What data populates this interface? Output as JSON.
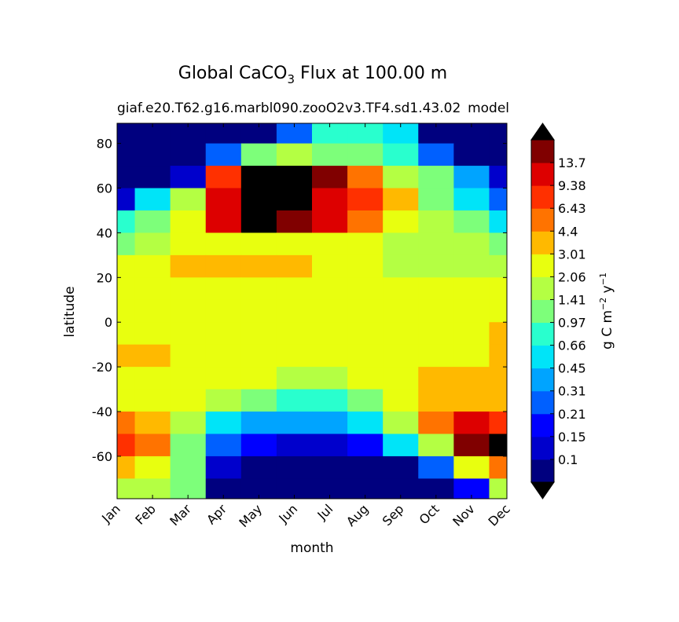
{
  "chart_data": {
    "type": "contour",
    "title_parts": [
      "Global CaCO",
      "3",
      " Flux at 100.00 m"
    ],
    "subtitle_left": "giaf.e20.T62.g16.marbl090.zooO2v3.TF4.sd1.43.02",
    "subtitle_right": "model",
    "xlabel": "month",
    "ylabel": "latitude",
    "colorbar_label_parts": [
      "g C m",
      "−2",
      " y",
      "−1"
    ],
    "x": [
      1,
      2,
      3,
      4,
      5,
      6,
      7,
      8,
      9,
      10,
      11,
      12
    ],
    "xlim": [
      1,
      12
    ],
    "xticks": [
      {
        "value": 1,
        "label": "Jan"
      },
      {
        "value": 2,
        "label": "Feb"
      },
      {
        "value": 3,
        "label": "Mar"
      },
      {
        "value": 4,
        "label": "Apr"
      },
      {
        "value": 5,
        "label": "May"
      },
      {
        "value": 6,
        "label": "Jun"
      },
      {
        "value": 7,
        "label": "Jul"
      },
      {
        "value": 8,
        "label": "Aug"
      },
      {
        "value": 9,
        "label": "Sep"
      },
      {
        "value": 10,
        "label": "Oct"
      },
      {
        "value": 11,
        "label": "Nov"
      },
      {
        "value": 12,
        "label": "Dec"
      }
    ],
    "y": [
      85,
      75,
      65,
      55,
      45,
      35,
      25,
      15,
      5,
      -5,
      -15,
      -25,
      -35,
      -45,
      -55,
      -65,
      -75
    ],
    "ylim": [
      -79,
      89
    ],
    "yticks": [
      -60,
      -40,
      -20,
      0,
      20,
      40,
      60,
      80
    ],
    "z": [
      [
        0.05,
        0.05,
        0.05,
        0.05,
        0.05,
        0.3,
        0.7,
        0.8,
        0.6,
        0.05,
        0.05,
        0.05
      ],
      [
        0.05,
        0.05,
        0.05,
        0.3,
        1.0,
        1.5,
        1.2,
        1.0,
        0.8,
        0.3,
        0.05,
        0.05
      ],
      [
        0.05,
        0.05,
        0.1,
        8,
        25,
        25,
        14,
        5,
        2,
        1.0,
        0.4,
        0.1
      ],
      [
        0.1,
        0.5,
        2,
        10,
        25,
        25,
        12,
        7,
        4,
        1.2,
        0.6,
        0.3
      ],
      [
        0.8,
        1.2,
        3,
        10,
        25,
        20,
        10,
        6,
        3,
        1.5,
        1.0,
        0.6
      ],
      [
        1.2,
        1.5,
        2.2,
        2.5,
        2.5,
        2.5,
        2.5,
        2.2,
        1.8,
        1.6,
        1.5,
        1.2
      ],
      [
        2.5,
        2.5,
        3.5,
        3.5,
        3.2,
        3.2,
        2.5,
        2.5,
        1.8,
        1.8,
        1.8,
        1.8
      ],
      [
        2.5,
        2.5,
        2.5,
        2.5,
        2.5,
        2.5,
        2.5,
        2.5,
        2.5,
        2.5,
        2.5,
        2.5
      ],
      [
        2.5,
        2.5,
        2.5,
        2.5,
        2.5,
        2.5,
        2.5,
        2.5,
        2.5,
        2.5,
        2.5,
        2.5
      ],
      [
        2.5,
        2.5,
        2.5,
        2.5,
        2.5,
        2.5,
        2.5,
        2.5,
        2.5,
        2.5,
        2.5,
        3.2
      ],
      [
        3.5,
        3.2,
        2.5,
        2.5,
        2.5,
        2.5,
        2.5,
        2.5,
        2.5,
        2.5,
        2.5,
        3.2
      ],
      [
        2.5,
        2.5,
        2.5,
        2.5,
        2.2,
        1.8,
        1.8,
        2.2,
        2.5,
        3.5,
        3.5,
        3.5
      ],
      [
        2.5,
        2.5,
        2.2,
        1.5,
        1.0,
        0.8,
        0.8,
        1.2,
        2.2,
        3.5,
        3.5,
        3.5
      ],
      [
        4.5,
        3.5,
        1.6,
        0.6,
        0.4,
        0.35,
        0.4,
        0.6,
        1.5,
        5,
        10,
        8
      ],
      [
        7,
        4.5,
        1.2,
        0.3,
        0.2,
        0.12,
        0.12,
        0.2,
        0.5,
        2,
        15,
        21
      ],
      [
        3.5,
        2.5,
        1.0,
        0.1,
        0.05,
        0.05,
        0.05,
        0.05,
        0.05,
        0.3,
        3,
        4.5
      ],
      [
        1.5,
        1.5,
        1.0,
        0.05,
        0.05,
        0.05,
        0.05,
        0.05,
        0.05,
        0.05,
        0.2,
        1.5
      ]
    ],
    "levels": [
      0.1,
      0.15,
      0.21,
      0.31,
      0.45,
      0.66,
      0.97,
      1.41,
      2.06,
      3.01,
      4.4,
      6.43,
      9.38,
      13.7
    ],
    "zlim": [
      0.04,
      20
    ],
    "colors": [
      "#00007f",
      "#0000cc",
      "#0000ff",
      "#0060ff",
      "#00a4ff",
      "#00e4f8",
      "#29ffce",
      "#7dff7a",
      "#b4ff43",
      "#e8ff0f",
      "#ffb900",
      "#ff7300",
      "#ff3000",
      "#dd0000",
      "#800000"
    ],
    "over_color": "#000000",
    "under_color": "#000000"
  }
}
